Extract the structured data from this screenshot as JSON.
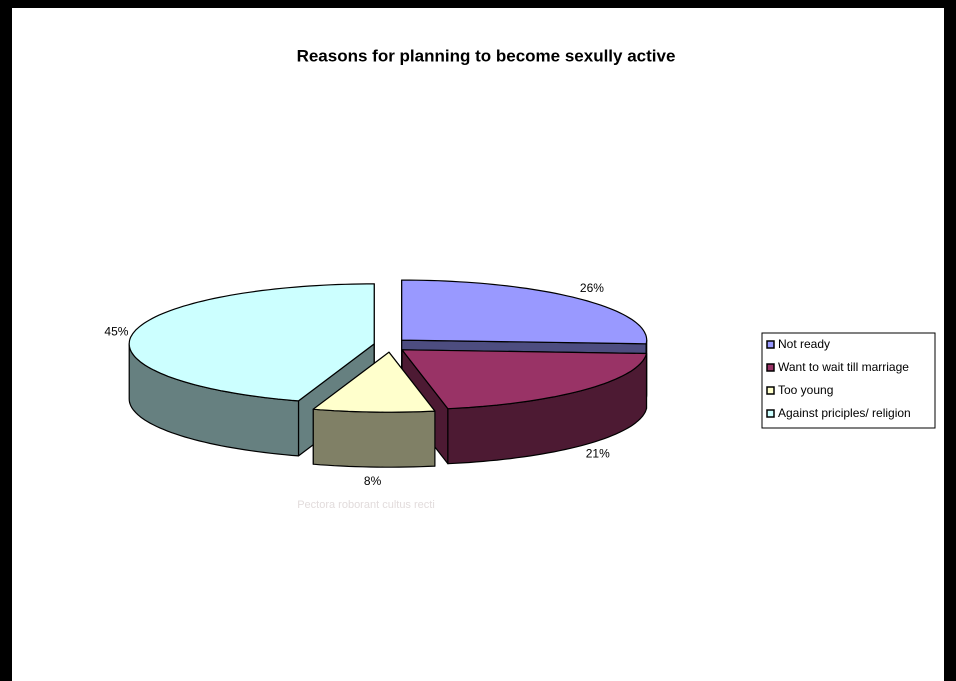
{
  "chart_data": {
    "type": "pie3d",
    "title": "Reasons for planning to become sexully active",
    "categories": [
      "Not ready",
      "Want to wait till marriage",
      "Too young",
      "Against priciples/ religion"
    ],
    "values": [
      26,
      21,
      8,
      45
    ],
    "value_labels": [
      "26%",
      "21%",
      "8%",
      "45%"
    ],
    "colors": [
      "#9999ff",
      "#993366",
      "#ffffcc",
      "#ccffff"
    ],
    "legend": "right",
    "watermark": "Pectora roborant cultus recti"
  }
}
